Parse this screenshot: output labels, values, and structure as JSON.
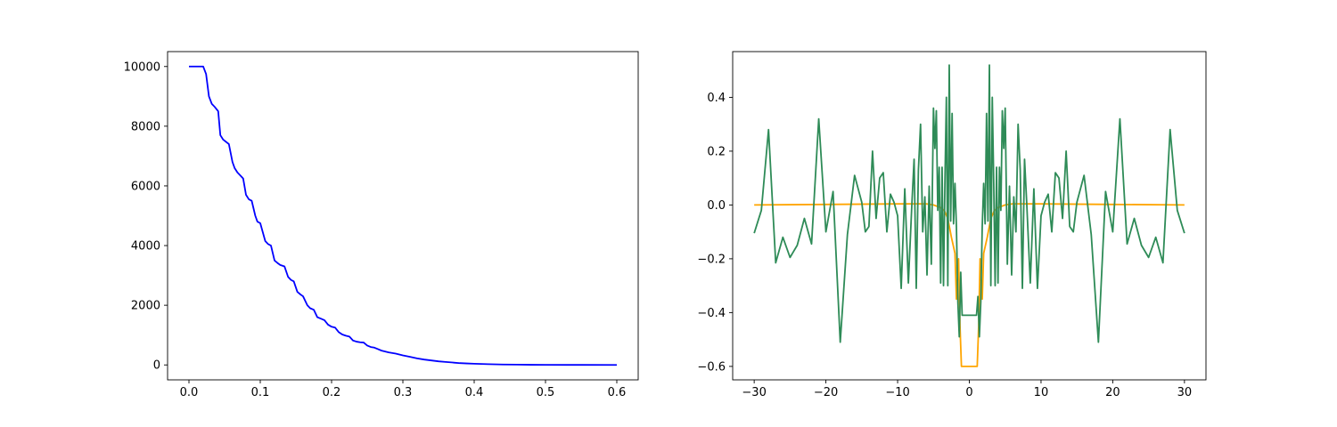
{
  "colors": {
    "background": "#ffffff",
    "axes": "#000000"
  },
  "chart_data": [
    {
      "type": "line",
      "title": "",
      "xlabel": "",
      "ylabel": "",
      "xlim": [
        -0.03,
        0.63
      ],
      "ylim": [
        -500,
        10500
      ],
      "grid": false,
      "legend": "none",
      "xticks": [
        0.0,
        0.1,
        0.2,
        0.3,
        0.4,
        0.5,
        0.6
      ],
      "xtick_labels": [
        "0.0",
        "0.1",
        "0.2",
        "0.3",
        "0.4",
        "0.5",
        "0.6"
      ],
      "yticks": [
        0,
        2000,
        4000,
        6000,
        8000,
        10000
      ],
      "ytick_labels": [
        "0",
        "2000",
        "4000",
        "6000",
        "8000",
        "10000"
      ],
      "series": [
        {
          "color": "#0000ff",
          "x": [
            0.0,
            0.02,
            0.024,
            0.028,
            0.032,
            0.036,
            0.041,
            0.044,
            0.048,
            0.056,
            0.061,
            0.064,
            0.068,
            0.076,
            0.08,
            0.084,
            0.088,
            0.093,
            0.096,
            0.1,
            0.107,
            0.111,
            0.115,
            0.12,
            0.125,
            0.128,
            0.134,
            0.139,
            0.143,
            0.147,
            0.152,
            0.157,
            0.16,
            0.166,
            0.17,
            0.175,
            0.18,
            0.185,
            0.19,
            0.195,
            0.2,
            0.205,
            0.21,
            0.215,
            0.22,
            0.225,
            0.23,
            0.235,
            0.24,
            0.245,
            0.25,
            0.255,
            0.26,
            0.265,
            0.27,
            0.28,
            0.29,
            0.3,
            0.31,
            0.32,
            0.33,
            0.34,
            0.35,
            0.36,
            0.37,
            0.38,
            0.39,
            0.4,
            0.42,
            0.44,
            0.46,
            0.48,
            0.5,
            0.55,
            0.6
          ],
          "y": [
            10000,
            10000,
            9750,
            9000,
            8750,
            8650,
            8500,
            7700,
            7550,
            7400,
            6800,
            6600,
            6450,
            6250,
            5700,
            5550,
            5500,
            5000,
            4800,
            4750,
            4150,
            4050,
            4000,
            3500,
            3400,
            3350,
            3300,
            2950,
            2850,
            2800,
            2450,
            2350,
            2300,
            2000,
            1900,
            1850,
            1600,
            1550,
            1500,
            1350,
            1280,
            1250,
            1100,
            1020,
            980,
            950,
            820,
            780,
            760,
            750,
            650,
            600,
            580,
            530,
            480,
            420,
            380,
            320,
            270,
            220,
            180,
            150,
            120,
            100,
            80,
            60,
            50,
            40,
            25,
            15,
            10,
            5,
            3,
            1,
            0
          ]
        }
      ]
    },
    {
      "type": "line",
      "title": "",
      "xlabel": "",
      "ylabel": "",
      "xlim": [
        -33,
        33
      ],
      "ylim": [
        -0.65,
        0.57
      ],
      "grid": false,
      "legend": "none",
      "xticks": [
        -30,
        -20,
        -10,
        0,
        10,
        20,
        30
      ],
      "xtick_labels": [
        "−30",
        "−20",
        "−10",
        "0",
        "10",
        "20",
        "30"
      ],
      "yticks": [
        -0.6,
        -0.4,
        -0.2,
        0.0,
        0.2,
        0.4
      ],
      "ytick_labels": [
        "−0.6",
        "−0.4",
        "−0.2",
        "0.0",
        "0.2",
        "0.4"
      ],
      "series": [
        {
          "color": "#ffa500",
          "x": [
            -30,
            -20,
            -10,
            -6,
            -5,
            -4,
            -3.5,
            -3,
            -2.5,
            -2,
            -1.8,
            -1.5,
            -1.3,
            -1.1,
            -0.9,
            0.9,
            1.1,
            1.3,
            1.5,
            1.8,
            2,
            2.5,
            3,
            3.5,
            4,
            5,
            6,
            10,
            20,
            30
          ],
          "y": [
            0.0,
            0.002,
            0.004,
            0.004,
            0.0,
            -0.01,
            -0.02,
            -0.05,
            -0.12,
            -0.18,
            -0.35,
            -0.2,
            -0.45,
            -0.6,
            -0.6,
            -0.6,
            -0.6,
            -0.45,
            -0.2,
            -0.35,
            -0.18,
            -0.12,
            -0.05,
            -0.02,
            -0.01,
            0.0,
            0.004,
            0.004,
            0.002,
            0.0
          ]
        },
        {
          "color": "#2e8b57",
          "x": [
            -30,
            -29,
            -28,
            -27,
            -26,
            -25,
            -24,
            -23,
            -22,
            -21,
            -20,
            -19,
            -18,
            -17,
            -16,
            -15,
            -14.5,
            -14,
            -13.5,
            -13,
            -12.5,
            -12,
            -11.5,
            -11,
            -10.5,
            -10,
            -9.5,
            -9,
            -8.5,
            -8,
            -7.7,
            -7.4,
            -7.1,
            -6.8,
            -6.5,
            -6.2,
            -5.9,
            -5.6,
            -5.3,
            -5,
            -4.8,
            -4.6,
            -4.4,
            -4.2,
            -4,
            -3.8,
            -3.6,
            -3.4,
            -3.2,
            -3,
            -2.8,
            -2.6,
            -2.4,
            -2.2,
            -2,
            -1.8,
            -1.6,
            -1.4,
            -1.2,
            -1,
            1,
            1.2,
            1.4,
            1.6,
            1.8,
            2,
            2.2,
            2.4,
            2.6,
            2.8,
            3,
            3.2,
            3.4,
            3.6,
            3.8,
            4,
            4.2,
            4.4,
            4.6,
            4.8,
            5,
            5.3,
            5.6,
            5.9,
            6.2,
            6.5,
            6.8,
            7.1,
            7.4,
            7.7,
            8,
            8.5,
            9,
            9.5,
            10,
            10.5,
            11,
            11.5,
            12,
            12.5,
            13,
            13.5,
            14,
            14.5,
            15,
            16,
            17,
            18,
            19,
            20,
            21,
            22,
            23,
            24,
            25,
            26,
            27,
            28,
            29,
            30
          ],
          "y": [
            -0.105,
            -0.02,
            0.28,
            -0.215,
            -0.12,
            -0.195,
            -0.15,
            -0.05,
            -0.145,
            0.32,
            -0.1,
            0.05,
            -0.51,
            -0.11,
            0.11,
            0.01,
            -0.1,
            -0.08,
            0.2,
            -0.05,
            0.1,
            0.12,
            -0.1,
            0.04,
            0.01,
            -0.04,
            -0.31,
            0.06,
            -0.29,
            0.01,
            0.17,
            -0.31,
            0.13,
            0.3,
            -0.1,
            0.03,
            -0.26,
            0.07,
            -0.22,
            0.36,
            0.21,
            0.35,
            -0.02,
            0.14,
            -0.29,
            0.14,
            -0.3,
            0.09,
            0.4,
            -0.3,
            0.52,
            -0.06,
            0.34,
            -0.07,
            0.08,
            -0.08,
            -0.36,
            -0.49,
            -0.25,
            -0.41,
            -0.41,
            -0.34,
            -0.49,
            -0.36,
            -0.08,
            0.08,
            -0.07,
            0.34,
            -0.06,
            0.52,
            -0.3,
            0.4,
            0.09,
            -0.3,
            0.14,
            -0.29,
            0.14,
            -0.02,
            0.35,
            0.21,
            0.36,
            -0.22,
            0.07,
            -0.26,
            0.03,
            -0.1,
            0.3,
            0.13,
            -0.31,
            0.17,
            0.01,
            -0.29,
            0.06,
            -0.31,
            -0.04,
            0.01,
            0.04,
            -0.1,
            0.12,
            0.1,
            -0.05,
            0.2,
            -0.08,
            -0.1,
            0.01,
            0.11,
            -0.11,
            -0.51,
            0.05,
            -0.1,
            0.32,
            -0.145,
            -0.05,
            -0.15,
            -0.195,
            -0.12,
            -0.215,
            0.28,
            -0.02,
            -0.105
          ]
        }
      ]
    }
  ]
}
